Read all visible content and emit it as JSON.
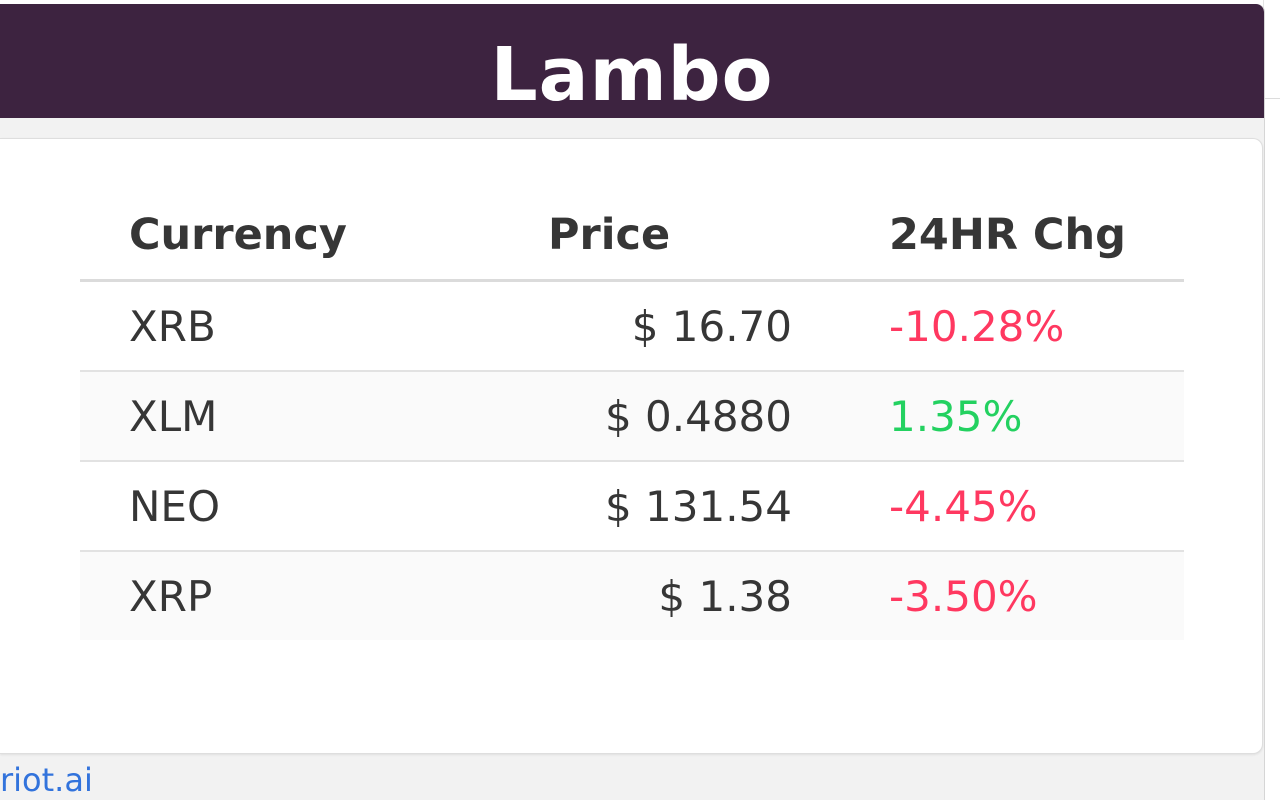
{
  "header": {
    "title": "Lambo",
    "background": "#3d2340"
  },
  "table": {
    "headers": {
      "currency": "Currency",
      "price": "Price",
      "change": "24HR Chg"
    },
    "rows": [
      {
        "currency": "XRB",
        "price": "$ 16.70",
        "change": "-10.28%",
        "direction": "negative"
      },
      {
        "currency": "XLM",
        "price": "$ 0.4880",
        "change": "1.35%",
        "direction": "positive"
      },
      {
        "currency": "NEO",
        "price": "$ 131.54",
        "change": "-4.45%",
        "direction": "negative"
      },
      {
        "currency": "XRP",
        "price": "$ 1.38",
        "change": "-3.50%",
        "direction": "negative"
      }
    ]
  },
  "footer": {
    "link_text": "riot.ai"
  },
  "colors": {
    "negative": "#ff3860",
    "positive": "#23d160",
    "link": "#3273dc"
  }
}
